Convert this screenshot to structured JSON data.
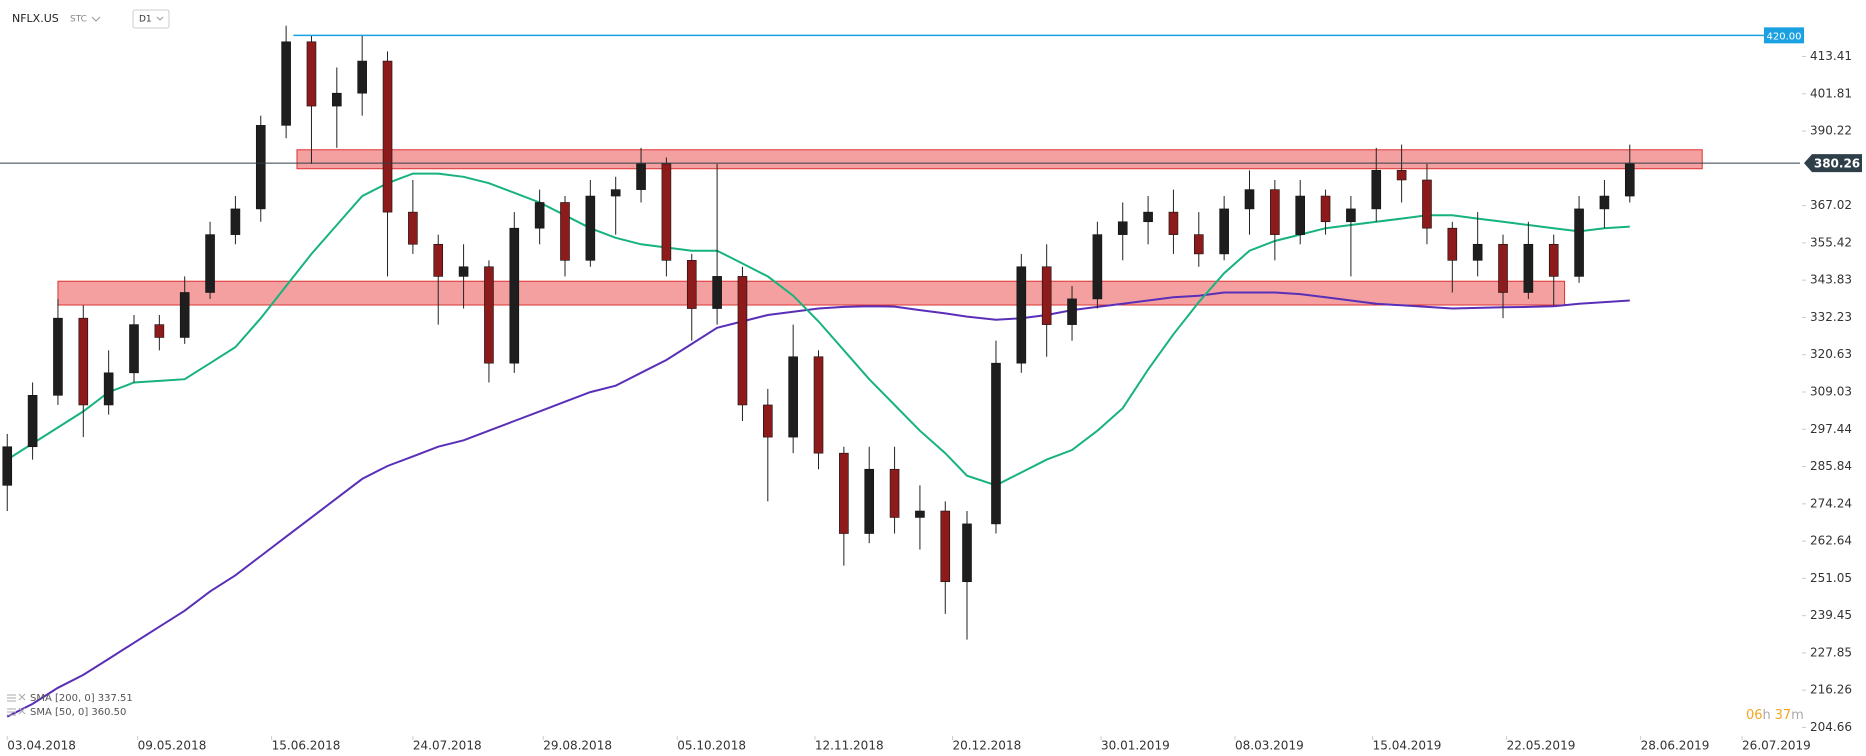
{
  "header": {
    "symbol": "NFLX.US",
    "source": "STC",
    "interval": "D1"
  },
  "chart_data": {
    "type": "candlestick",
    "x": [
      "03.04.2018",
      "10.04.2018",
      "17.04.2018",
      "24.04.2018",
      "01.05.2018",
      "08.05.2018",
      "15.05.2018",
      "22.05.2018",
      "29.05.2018",
      "05.06.2018",
      "12.06.2018",
      "19.06.2018",
      "26.06.2018",
      "03.07.2018",
      "10.07.2018",
      "17.07.2018",
      "24.07.2018",
      "31.07.2018",
      "07.08.2018",
      "14.08.2018",
      "21.08.2018",
      "28.08.2018",
      "04.09.2018",
      "11.09.2018",
      "18.09.2018",
      "25.09.2018",
      "02.10.2018",
      "09.10.2018",
      "16.10.2018",
      "23.10.2018",
      "30.10.2018",
      "06.11.2018",
      "13.11.2018",
      "20.11.2018",
      "27.11.2018",
      "04.12.2018",
      "11.12.2018",
      "18.12.2018",
      "24.12.2018",
      "01.01.2019",
      "08.01.2019",
      "15.01.2019",
      "22.01.2019",
      "29.01.2019",
      "05.02.2019",
      "12.02.2019",
      "19.02.2019",
      "26.02.2019",
      "05.03.2019",
      "12.03.2019",
      "19.03.2019",
      "26.03.2019",
      "02.04.2019",
      "09.04.2019",
      "16.04.2019",
      "23.04.2019",
      "30.04.2019",
      "07.05.2019",
      "14.05.2019",
      "21.05.2019",
      "28.05.2019",
      "04.06.2019",
      "11.06.2019",
      "18.06.2019",
      "25.06.2019"
    ],
    "open": [
      280,
      292,
      308,
      332,
      305,
      315,
      330,
      326,
      340,
      358,
      366,
      392,
      418,
      398,
      402,
      412,
      365,
      355,
      345,
      348,
      318,
      360,
      368,
      350,
      370,
      372,
      380,
      350,
      335,
      345,
      305,
      295,
      320,
      290,
      265,
      285,
      270,
      272,
      250,
      268,
      318,
      348,
      330,
      338,
      358,
      362,
      365,
      358,
      352,
      366,
      372,
      358,
      370,
      362,
      366,
      378,
      375,
      360,
      350,
      355,
      340,
      355,
      345,
      366,
      370
    ],
    "high": [
      296,
      312,
      338,
      336,
      322,
      333,
      333,
      345,
      362,
      370,
      395,
      423,
      420,
      410,
      420,
      415,
      375,
      358,
      355,
      350,
      365,
      372,
      370,
      375,
      376,
      385,
      382,
      352,
      380,
      348,
      310,
      330,
      322,
      292,
      292,
      292,
      280,
      275,
      272,
      325,
      352,
      355,
      342,
      362,
      368,
      370,
      372,
      365,
      370,
      378,
      375,
      375,
      372,
      370,
      385,
      386,
      380,
      362,
      365,
      358,
      362,
      358,
      370,
      375,
      386
    ],
    "low": [
      272,
      288,
      305,
      295,
      302,
      312,
      322,
      324,
      338,
      355,
      362,
      388,
      380,
      385,
      395,
      345,
      352,
      330,
      335,
      312,
      315,
      355,
      345,
      348,
      358,
      368,
      345,
      325,
      330,
      300,
      275,
      290,
      285,
      255,
      262,
      265,
      260,
      240,
      232,
      265,
      315,
      320,
      325,
      335,
      350,
      355,
      352,
      348,
      350,
      358,
      350,
      355,
      358,
      345,
      362,
      368,
      355,
      340,
      345,
      332,
      338,
      336,
      343,
      360,
      368
    ],
    "close": [
      292,
      308,
      332,
      305,
      315,
      330,
      326,
      340,
      358,
      366,
      392,
      418,
      398,
      402,
      412,
      365,
      355,
      345,
      348,
      318,
      360,
      368,
      350,
      370,
      372,
      380,
      350,
      335,
      345,
      305,
      295,
      320,
      290,
      265,
      285,
      270,
      272,
      250,
      268,
      318,
      348,
      330,
      338,
      358,
      362,
      365,
      358,
      352,
      366,
      372,
      358,
      370,
      362,
      366,
      378,
      375,
      360,
      350,
      355,
      340,
      355,
      345,
      366,
      370,
      380
    ],
    "up_color": "#1e1e1e",
    "down_color": "#8e1b1b",
    "lines": [
      {
        "name": "SMA [200, 0] 337.51",
        "color": "#5a2fb8",
        "values": [
          208,
          212,
          217,
          221,
          226,
          231,
          236,
          241,
          247,
          252,
          258,
          264,
          270,
          276,
          282,
          286,
          289,
          292,
          294,
          297,
          300,
          303,
          306,
          309,
          311,
          315,
          319,
          324,
          329,
          331,
          333,
          334,
          335,
          335.5,
          335.7,
          335.6,
          334.5,
          333.5,
          332.5,
          331.5,
          332,
          333,
          334.5,
          335.5,
          336.5,
          337.5,
          338.5,
          339,
          340,
          340,
          340,
          339.5,
          338.5,
          337.5,
          336.5,
          336,
          335.5,
          335,
          335.2,
          335.4,
          335.5,
          335.7,
          336.5,
          337,
          337.51
        ]
      },
      {
        "name": "SMA [50, 0] 360.50",
        "color": "#17b37c",
        "values": [
          288,
          293,
          298,
          303,
          309,
          312,
          312.5,
          313,
          318,
          323,
          332,
          342,
          352,
          361,
          370,
          374,
          377,
          377,
          376,
          374,
          371,
          368,
          364,
          360,
          357,
          355,
          354,
          353,
          353,
          349,
          345,
          339,
          331,
          322,
          313,
          305,
          297,
          290,
          283,
          280,
          284,
          288,
          291,
          297,
          304,
          316,
          327,
          337,
          346,
          353,
          356,
          358,
          360,
          361,
          362,
          363,
          364,
          364,
          363,
          362,
          361,
          360,
          359,
          360,
          360.5
        ]
      }
    ],
    "zones": [
      {
        "x": [
          "22.06.2018",
          "15.07.2019"
        ],
        "y": [
          378.5,
          384.4
        ],
        "color": "#f28f8f"
      },
      {
        "x": [
          "17.04.2018",
          "07.06.2019"
        ],
        "y": [
          336.1,
          343.5
        ],
        "color": "#f28f8f"
      }
    ],
    "hlines": [
      {
        "from": "21.06.2018",
        "value": 420,
        "label": "420.00",
        "color": "#1ba1e2"
      }
    ],
    "last_price": {
      "value": 380.26,
      "color": "#2f3f4a"
    },
    "xlim": [
      "01.04.2018",
      "11.08.2019"
    ],
    "xticks": [
      "03.04.2018",
      "09.05.2018",
      "15.06.2018",
      "24.07.2018",
      "29.08.2018",
      "05.10.2018",
      "12.11.2018",
      "20.12.2018",
      "30.01.2019",
      "08.03.2019",
      "15.04.2019",
      "22.05.2019",
      "28.06.2019",
      "26.07.2019"
    ],
    "ylim": [
      202,
      431
    ],
    "yticks": [
      204.66,
      216.26,
      227.85,
      239.45,
      251.05,
      262.64,
      274.24,
      285.84,
      297.44,
      309.03,
      320.63,
      332.23,
      343.83,
      355.42,
      367.02,
      390.22,
      401.81,
      413.41
    ],
    "countdown": [
      "06",
      "h",
      "37",
      "m"
    ]
  }
}
